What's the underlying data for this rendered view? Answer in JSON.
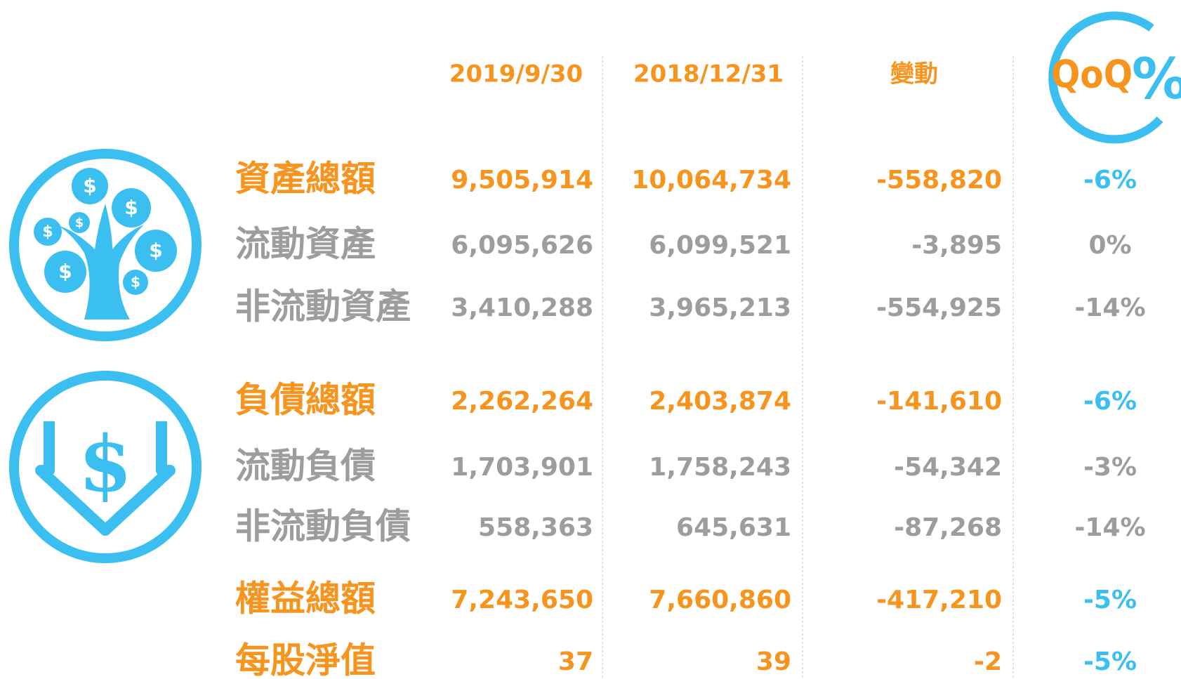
{
  "header": {
    "columns": [
      "2019/9/30",
      "2018/12/31",
      "變動"
    ],
    "badge": {
      "text": "QoQ",
      "symbol": "%"
    }
  },
  "table": {
    "rows": [
      {
        "label": "資產總額",
        "main": true,
        "cells": [
          "9,505,914",
          "10,064,734",
          "-558,820",
          "-6%"
        ]
      },
      {
        "label": "流動資產",
        "main": false,
        "cells": [
          "6,095,626",
          "6,099,521",
          "-3,895",
          "0%"
        ]
      },
      {
        "label": "非流動資產",
        "main": false,
        "cells": [
          "3,410,288",
          "3,965,213",
          "-554,925",
          "-14%"
        ]
      },
      {
        "label": "負債總額",
        "main": true,
        "cells": [
          "2,262,264",
          "2,403,874",
          "-141,610",
          "-6%"
        ]
      },
      {
        "label": "流動負債",
        "main": false,
        "cells": [
          "1,703,901",
          "1,758,243",
          "-54,342",
          "-3%"
        ]
      },
      {
        "label": "非流動負債",
        "main": false,
        "cells": [
          "558,363",
          "645,631",
          "-87,268",
          "-14%"
        ]
      },
      {
        "label": "權益總額",
        "main": true,
        "cells": [
          "7,243,650",
          "7,660,860",
          "-417,210",
          "-5%"
        ]
      },
      {
        "label": "每股淨值",
        "main": true,
        "cells": [
          "37",
          "39",
          "-2",
          "-5%"
        ]
      }
    ]
  }
}
